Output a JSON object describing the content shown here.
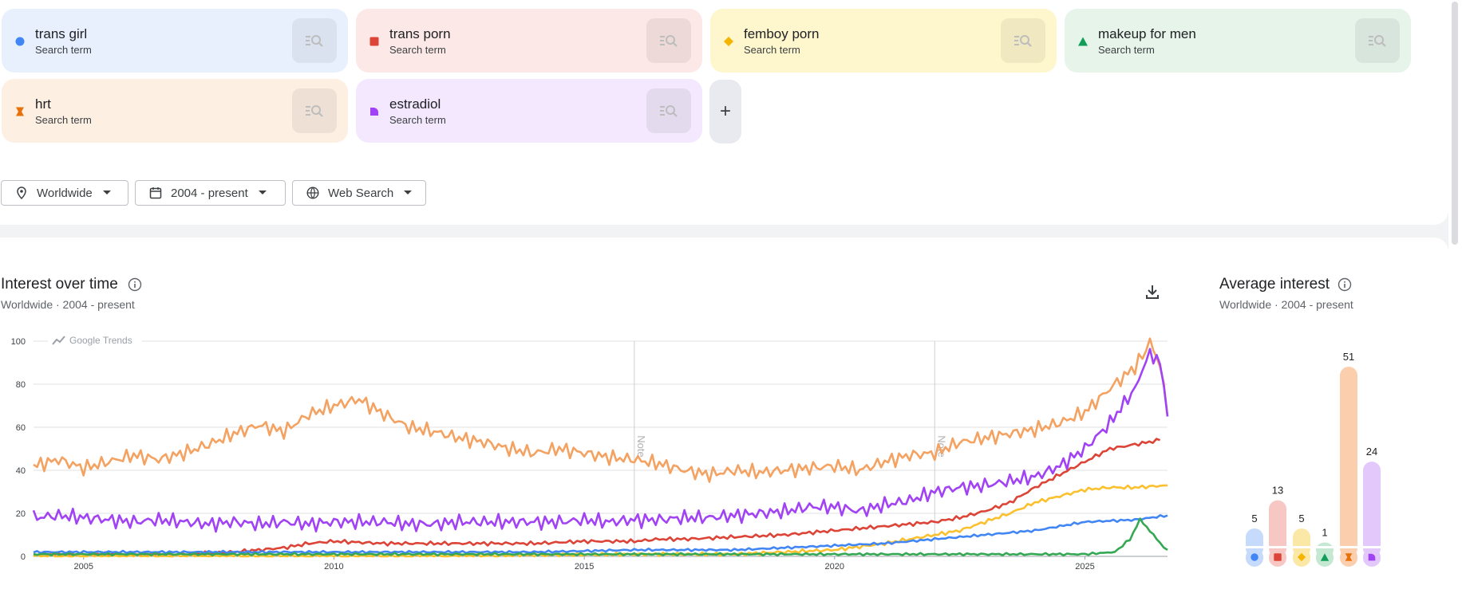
{
  "terms": [
    {
      "name": "trans girl",
      "sub": "Search term",
      "color": "#4285f4",
      "bg": "#e8f0fe",
      "marker": "circle"
    },
    {
      "name": "trans porn",
      "sub": "Search term",
      "color": "#db4437",
      "bg": "#fce8e6",
      "marker": "square"
    },
    {
      "name": "femboy porn",
      "sub": "Search term",
      "color": "#f4b400",
      "bg": "#fef7cd",
      "marker": "diamond"
    },
    {
      "name": "makeup for men",
      "sub": "Search term",
      "color": "#0f9d58",
      "bg": "#e6f4ea",
      "marker": "triangle"
    },
    {
      "name": "hrt",
      "sub": "Search term",
      "color": "#e8710a",
      "bg": "#feefe3",
      "marker": "bowtie"
    },
    {
      "name": "estradiol",
      "sub": "Search term",
      "color": "#a142f4",
      "bg": "#f3e8fd",
      "marker": "quarter"
    }
  ],
  "add_button": "+",
  "filters": [
    {
      "label": "Worldwide",
      "icon": "location-pin-icon"
    },
    {
      "label": "2004 - present",
      "icon": "calendar-icon"
    },
    {
      "label": "Web Search",
      "icon": "globe-icon"
    }
  ],
  "interest_over_time": {
    "title": "Interest over time",
    "subtitle": "Worldwide · 2004 - present",
    "watermark": "Google Trends",
    "note_label": "Note"
  },
  "average_interest": {
    "title": "Average interest",
    "subtitle": "Worldwide · 2004 - present"
  },
  "chart_data": [
    {
      "type": "line",
      "x_range": [
        "2004-01",
        "2026-08"
      ],
      "x_ticks": [
        "2005",
        "2010",
        "2015",
        "2020",
        "2025"
      ],
      "y_ticks": [
        "0",
        "20",
        "40",
        "60",
        "80",
        "100"
      ],
      "ylim": [
        0,
        100
      ],
      "grid": true,
      "notes_at": [
        2016.0,
        2022.0
      ],
      "series": [
        {
          "name": "hrt",
          "color": "#f4a261",
          "points": [
            [
              2004.0,
              42
            ],
            [
              2004.5,
              45
            ],
            [
              2005.0,
              41
            ],
            [
              2005.5,
              44
            ],
            [
              2006.0,
              47
            ],
            [
              2006.5,
              45
            ],
            [
              2007.0,
              48
            ],
            [
              2007.5,
              52
            ],
            [
              2008.0,
              57
            ],
            [
              2008.5,
              61
            ],
            [
              2009.0,
              58
            ],
            [
              2009.5,
              66
            ],
            [
              2010.0,
              70
            ],
            [
              2010.5,
              73
            ],
            [
              2011.0,
              66
            ],
            [
              2011.5,
              60
            ],
            [
              2012.0,
              58
            ],
            [
              2012.5,
              55
            ],
            [
              2013.0,
              53
            ],
            [
              2013.5,
              50
            ],
            [
              2014.0,
              48
            ],
            [
              2014.5,
              50
            ],
            [
              2015.0,
              48
            ],
            [
              2015.5,
              46
            ],
            [
              2016.0,
              45
            ],
            [
              2016.5,
              43
            ],
            [
              2017.0,
              40
            ],
            [
              2017.5,
              38
            ],
            [
              2018.0,
              40
            ],
            [
              2018.5,
              39
            ],
            [
              2019.0,
              40
            ],
            [
              2019.5,
              41
            ],
            [
              2020.0,
              42
            ],
            [
              2020.5,
              40
            ],
            [
              2021.0,
              44
            ],
            [
              2021.5,
              47
            ],
            [
              2022.0,
              48
            ],
            [
              2022.5,
              53
            ],
            [
              2023.0,
              55
            ],
            [
              2023.5,
              57
            ],
            [
              2024.0,
              59
            ],
            [
              2024.5,
              62
            ],
            [
              2025.0,
              67
            ],
            [
              2025.5,
              78
            ],
            [
              2026.0,
              88
            ],
            [
              2026.3,
              99
            ],
            [
              2026.5,
              90
            ],
            [
              2026.65,
              65
            ]
          ]
        },
        {
          "name": "estradiol",
          "color": "#a142f4",
          "points": [
            [
              2004.0,
              18
            ],
            [
              2004.5,
              19
            ],
            [
              2005.0,
              18
            ],
            [
              2005.5,
              17
            ],
            [
              2006.0,
              16
            ],
            [
              2006.5,
              17
            ],
            [
              2007.0,
              16
            ],
            [
              2007.5,
              15
            ],
            [
              2008.0,
              16
            ],
            [
              2008.5,
              15
            ],
            [
              2009.0,
              16
            ],
            [
              2009.5,
              15
            ],
            [
              2010.0,
              16
            ],
            [
              2010.5,
              16
            ],
            [
              2011.0,
              16
            ],
            [
              2011.5,
              15
            ],
            [
              2012.0,
              15
            ],
            [
              2012.5,
              16
            ],
            [
              2013.0,
              16
            ],
            [
              2013.5,
              16
            ],
            [
              2014.0,
              16
            ],
            [
              2014.5,
              16
            ],
            [
              2015.0,
              17
            ],
            [
              2015.5,
              16
            ],
            [
              2016.0,
              17
            ],
            [
              2016.5,
              17
            ],
            [
              2017.0,
              18
            ],
            [
              2017.5,
              18
            ],
            [
              2018.0,
              19
            ],
            [
              2018.5,
              20
            ],
            [
              2019.0,
              21
            ],
            [
              2019.5,
              23
            ],
            [
              2020.0,
              23
            ],
            [
              2020.5,
              21
            ],
            [
              2021.0,
              24
            ],
            [
              2021.5,
              26
            ],
            [
              2022.0,
              30
            ],
            [
              2022.5,
              32
            ],
            [
              2023.0,
              33
            ],
            [
              2023.5,
              35
            ],
            [
              2024.0,
              37
            ],
            [
              2024.5,
              42
            ],
            [
              2025.0,
              50
            ],
            [
              2025.5,
              62
            ],
            [
              2026.0,
              78
            ],
            [
              2026.3,
              95
            ],
            [
              2026.5,
              90
            ],
            [
              2026.65,
              65
            ]
          ]
        },
        {
          "name": "trans porn",
          "color": "#db4437",
          "points": [
            [
              2004.0,
              1
            ],
            [
              2005.0,
              1
            ],
            [
              2006.0,
              1
            ],
            [
              2007.0,
              1
            ],
            [
              2008.0,
              2
            ],
            [
              2008.5,
              3
            ],
            [
              2009.0,
              4
            ],
            [
              2009.5,
              6
            ],
            [
              2010.0,
              7
            ],
            [
              2011.0,
              6
            ],
            [
              2012.0,
              6
            ],
            [
              2013.0,
              6
            ],
            [
              2014.0,
              6
            ],
            [
              2015.0,
              7
            ],
            [
              2016.0,
              7
            ],
            [
              2016.5,
              8
            ],
            [
              2017.0,
              8
            ],
            [
              2018.0,
              9
            ],
            [
              2019.0,
              10
            ],
            [
              2020.0,
              12
            ],
            [
              2021.0,
              14
            ],
            [
              2022.0,
              16
            ],
            [
              2022.5,
              18
            ],
            [
              2023.0,
              21
            ],
            [
              2023.5,
              25
            ],
            [
              2024.0,
              32
            ],
            [
              2024.5,
              38
            ],
            [
              2025.0,
              44
            ],
            [
              2025.5,
              50
            ],
            [
              2026.0,
              52
            ],
            [
              2026.5,
              54
            ]
          ]
        },
        {
          "name": "femboy porn",
          "color": "#fbc02d",
          "points": [
            [
              2004.0,
              0
            ],
            [
              2008.0,
              0
            ],
            [
              2012.0,
              0
            ],
            [
              2016.0,
              1
            ],
            [
              2018.0,
              1
            ],
            [
              2019.0,
              2
            ],
            [
              2020.0,
              3
            ],
            [
              2021.0,
              6
            ],
            [
              2022.0,
              10
            ],
            [
              2022.5,
              12
            ],
            [
              2023.0,
              16
            ],
            [
              2023.5,
              20
            ],
            [
              2024.0,
              25
            ],
            [
              2024.5,
              28
            ],
            [
              2025.0,
              31
            ],
            [
              2025.5,
              32
            ],
            [
              2026.0,
              32
            ],
            [
              2026.65,
              33
            ]
          ]
        },
        {
          "name": "trans girl",
          "color": "#4285f4",
          "points": [
            [
              2004.0,
              2
            ],
            [
              2006.0,
              2
            ],
            [
              2008.0,
              2
            ],
            [
              2010.0,
              2
            ],
            [
              2012.0,
              2
            ],
            [
              2014.0,
              2
            ],
            [
              2016.0,
              3
            ],
            [
              2017.0,
              3
            ],
            [
              2018.0,
              3
            ],
            [
              2019.0,
              4
            ],
            [
              2020.0,
              5
            ],
            [
              2021.0,
              6
            ],
            [
              2022.0,
              8
            ],
            [
              2023.0,
              10
            ],
            [
              2024.0,
              12
            ],
            [
              2025.0,
              16
            ],
            [
              2026.0,
              17
            ],
            [
              2026.65,
              19
            ]
          ]
        },
        {
          "name": "makeup for men",
          "color": "#34a853",
          "points": [
            [
              2004.0,
              1
            ],
            [
              2008.0,
              1
            ],
            [
              2012.0,
              1
            ],
            [
              2016.0,
              1
            ],
            [
              2020.0,
              1
            ],
            [
              2024.0,
              1
            ],
            [
              2025.0,
              1
            ],
            [
              2025.6,
              2
            ],
            [
              2025.9,
              8
            ],
            [
              2026.1,
              17
            ],
            [
              2026.3,
              12
            ],
            [
              2026.5,
              6
            ],
            [
              2026.65,
              3
            ]
          ]
        }
      ]
    },
    {
      "type": "bar",
      "categories": [
        "trans girl",
        "trans porn",
        "femboy porn",
        "makeup for men",
        "hrt",
        "estradiol"
      ],
      "values": [
        5,
        13,
        5,
        1,
        51,
        24
      ],
      "ylim": [
        0,
        51
      ]
    }
  ]
}
